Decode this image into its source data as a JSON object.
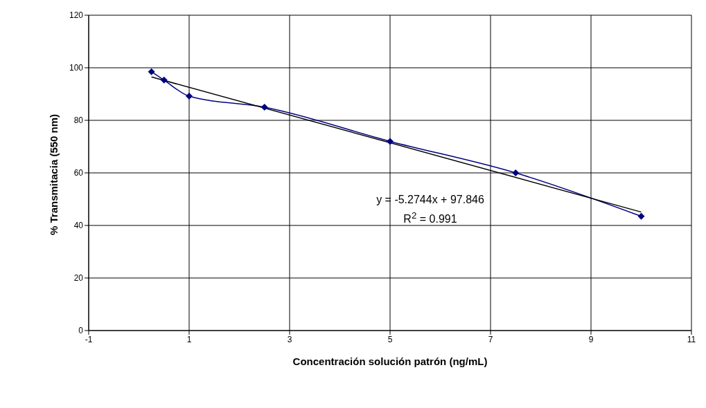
{
  "chart_data": {
    "type": "line",
    "xlabel": "Concentración solución patrón (ng/mL)",
    "ylabel": "% Transmitacia (550 nm)",
    "xlim": [
      -1,
      11
    ],
    "xticks": [
      -1,
      1,
      3,
      5,
      7,
      9,
      11
    ],
    "ylim": [
      0,
      120
    ],
    "yticks": [
      0,
      20,
      40,
      60,
      80,
      100,
      120
    ],
    "grid": true,
    "legend": false,
    "marker": "diamond",
    "line_style": "solid",
    "series": [
      {
        "color": "#000080",
        "x": [
          0.25,
          0.5,
          1,
          2.5,
          5,
          7.5,
          10
        ],
        "values": [
          98.5,
          95.3,
          89.2,
          85,
          72,
          60,
          43.5
        ]
      },
      {
        "color": "#000000",
        "marker": "none",
        "x": [
          0.25,
          10
        ],
        "values": [
          96.5,
          45.1
        ]
      }
    ],
    "annotations": [
      "y = -5.2744x + 97.846",
      "R$^{2}$ = 0.991"
    ]
  }
}
